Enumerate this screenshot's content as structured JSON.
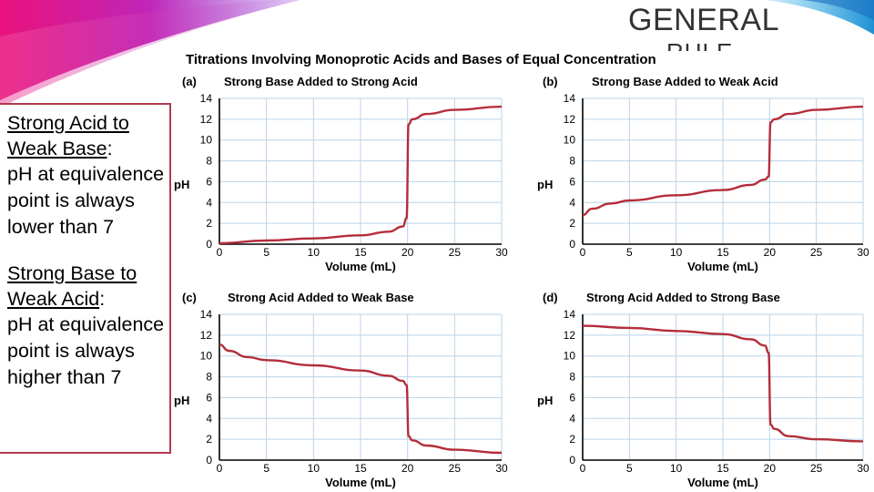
{
  "slide": {
    "title": "GENERAL",
    "title_overflow": "RULE"
  },
  "rules": [
    {
      "heading": "Strong Acid to Weak Base",
      "text": "pH at equivalence point is always lower than 7"
    },
    {
      "heading": "Strong Base to Weak Acid",
      "text": "pH at equivalence point is always higher than 7"
    }
  ],
  "figure_title": "Titrations Involving Monoprotic Acids and Bases of Equal Concentration",
  "colors": {
    "curve": "#b32d3a",
    "grid": "#b8d4ea",
    "accent_box": "#b03a4e",
    "axis": "#000000"
  },
  "chart_data": [
    {
      "type": "line",
      "label": "(a)",
      "title": "Strong Base Added to Strong Acid",
      "xlabel": "Volume (mL)",
      "ylabel": "pH",
      "xlim": [
        0,
        30
      ],
      "ylim": [
        0,
        14
      ],
      "xticks": [
        0,
        5,
        10,
        15,
        20,
        25,
        30
      ],
      "yticks": [
        0,
        2,
        4,
        6,
        8,
        10,
        12,
        14
      ],
      "grid": true,
      "series": [
        {
          "x": [
            0,
            5,
            10,
            15,
            18,
            19.5,
            19.9,
            20.1,
            20.5,
            22,
            25,
            30
          ],
          "y": [
            0.1,
            0.35,
            0.55,
            0.85,
            1.2,
            1.7,
            2.5,
            11.5,
            12.0,
            12.5,
            12.9,
            13.2
          ]
        }
      ]
    },
    {
      "type": "line",
      "label": "(b)",
      "title": "Strong Base Added to Weak Acid",
      "xlabel": "Volume (mL)",
      "ylabel": "pH",
      "xlim": [
        0,
        30
      ],
      "ylim": [
        0,
        14
      ],
      "xticks": [
        0,
        5,
        10,
        15,
        20,
        25,
        30
      ],
      "yticks": [
        0,
        2,
        4,
        6,
        8,
        10,
        12,
        14
      ],
      "grid": true,
      "series": [
        {
          "x": [
            0,
            1,
            3,
            5,
            10,
            15,
            18,
            19.5,
            19.9,
            20.1,
            20.5,
            22,
            25,
            30
          ],
          "y": [
            2.8,
            3.4,
            3.9,
            4.2,
            4.7,
            5.2,
            5.7,
            6.2,
            6.5,
            11.7,
            12.0,
            12.5,
            12.9,
            13.2
          ]
        }
      ]
    },
    {
      "type": "line",
      "label": "(c)",
      "title": "Strong Acid Added to Weak Base",
      "xlabel": "Volume (mL)",
      "ylabel": "pH",
      "xlim": [
        0,
        30
      ],
      "ylim": [
        0,
        14
      ],
      "xticks": [
        0,
        5,
        10,
        15,
        20,
        25,
        30
      ],
      "yticks": [
        0,
        2,
        4,
        6,
        8,
        10,
        12,
        14
      ],
      "grid": true,
      "series": [
        {
          "x": [
            0,
            1,
            3,
            5,
            10,
            15,
            18,
            19.5,
            19.9,
            20.1,
            20.5,
            22,
            25,
            30
          ],
          "y": [
            11.1,
            10.5,
            9.9,
            9.6,
            9.1,
            8.6,
            8.1,
            7.6,
            7.2,
            2.3,
            1.9,
            1.4,
            1.0,
            0.7
          ]
        }
      ]
    },
    {
      "type": "line",
      "label": "(d)",
      "title": "Strong Acid Added to Strong Base",
      "xlabel": "Volume (mL)",
      "ylabel": "pH",
      "xlim": [
        0,
        30
      ],
      "ylim": [
        0,
        14
      ],
      "xticks": [
        0,
        5,
        10,
        15,
        20,
        25,
        30
      ],
      "yticks": [
        0,
        2,
        4,
        6,
        8,
        10,
        12,
        14
      ],
      "grid": true,
      "series": [
        {
          "x": [
            0,
            5,
            10,
            15,
            18,
            19.5,
            19.9,
            20.1,
            20.5,
            22,
            25,
            30
          ],
          "y": [
            12.9,
            12.7,
            12.4,
            12.1,
            11.6,
            11.0,
            10.3,
            3.4,
            3.0,
            2.3,
            2.0,
            1.8
          ]
        }
      ]
    }
  ]
}
